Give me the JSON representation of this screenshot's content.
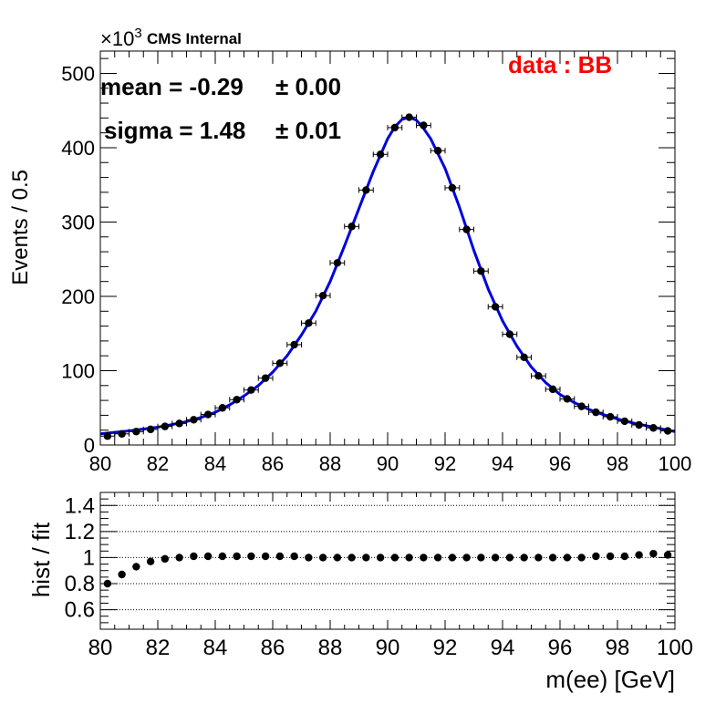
{
  "chart_data": [
    {
      "type": "scatter",
      "panel": "main",
      "title": "",
      "xlabel": "",
      "ylabel": "Events / 0.5",
      "xlim": [
        80,
        100
      ],
      "ylim": [
        0,
        530
      ],
      "y_scale_label": "×10",
      "y_scale_exponent": "3",
      "x_ticks": [
        "80",
        "82",
        "84",
        "86",
        "88",
        "90",
        "92",
        "94",
        "96",
        "98",
        "100"
      ],
      "y_ticks": [
        "0",
        "100",
        "200",
        "300",
        "400",
        "500"
      ],
      "x_tick_values": [
        80,
        82,
        84,
        86,
        88,
        90,
        92,
        94,
        96,
        98,
        100
      ],
      "y_tick_values": [
        0,
        100,
        200,
        300,
        400,
        500
      ],
      "experiment_label": "CMS Internal",
      "category_label": "data : BB",
      "category_color": "#ff0000",
      "fit_color": "#0000dd",
      "mean_text": "mean = -0.29",
      "mean_err_text": "± 0.00",
      "sigma_text": "sigma = 1.48",
      "sigma_err_text": "± 0.01",
      "x_err_half_width": 0.25,
      "series": [
        {
          "type": "points",
          "x": [
            80.25,
            80.75,
            81.25,
            81.75,
            82.25,
            82.75,
            83.25,
            83.75,
            84.25,
            84.75,
            85.25,
            85.75,
            86.25,
            86.75,
            87.25,
            87.75,
            88.25,
            88.75,
            89.25,
            89.75,
            90.25,
            90.75,
            91.25,
            91.75,
            92.25,
            92.75,
            93.25,
            93.75,
            94.25,
            94.75,
            95.25,
            95.75,
            96.25,
            96.75,
            97.25,
            97.75,
            98.25,
            98.75,
            99.25,
            99.75
          ],
          "y": [
            12,
            15,
            18,
            21,
            25,
            29,
            34,
            41,
            50,
            61,
            74,
            90,
            110,
            135,
            164,
            201,
            245,
            294,
            343,
            391,
            427,
            441,
            430,
            396,
            346,
            290,
            234,
            186,
            149,
            118,
            93,
            75,
            62,
            52,
            44,
            38,
            32,
            27,
            23,
            19
          ]
        },
        {
          "type": "line",
          "x": [
            80,
            80.5,
            81,
            81.5,
            82,
            82.5,
            83,
            83.5,
            84,
            84.5,
            85,
            85.5,
            86,
            86.5,
            87,
            87.5,
            88,
            88.5,
            89,
            89.5,
            90,
            90.25,
            90.5,
            90.75,
            91,
            91.25,
            91.5,
            92,
            92.5,
            93,
            93.5,
            94,
            94.5,
            95,
            95.5,
            96,
            96.5,
            97,
            97.5,
            98,
            98.5,
            99,
            99.5,
            100
          ],
          "y": [
            15,
            17,
            19,
            21.5,
            24,
            27.5,
            31.5,
            37,
            44,
            54,
            66,
            80,
            98,
            120,
            148,
            180,
            220,
            268,
            318,
            368,
            412,
            428,
            438,
            441,
            437,
            426,
            412,
            372,
            320,
            262,
            210,
            167,
            133,
            105,
            84,
            68,
            57,
            48,
            41,
            35,
            30,
            26,
            22,
            18
          ]
        }
      ]
    },
    {
      "type": "scatter",
      "panel": "ratio",
      "title": "",
      "xlabel": "m(ee) [GeV]",
      "ylabel": "hist / fit",
      "xlim": [
        80,
        100
      ],
      "ylim": [
        0.45,
        1.5
      ],
      "x_ticks": [
        "80",
        "82",
        "84",
        "86",
        "88",
        "90",
        "92",
        "94",
        "96",
        "98",
        "100"
      ],
      "y_ticks": [
        "0.6",
        "0.8",
        "1",
        "1.2",
        "1.4"
      ],
      "x_tick_values": [
        80,
        82,
        84,
        86,
        88,
        90,
        92,
        94,
        96,
        98,
        100
      ],
      "y_tick_values": [
        0.6,
        0.8,
        1.0,
        1.2,
        1.4
      ],
      "y_tick_text": [
        "0.6",
        "0.8",
        "1",
        "1.2",
        "1.4"
      ],
      "gridlines_y": [
        0.6,
        0.8,
        1.0,
        1.2,
        1.4
      ],
      "series": [
        {
          "type": "points",
          "x": [
            80.25,
            80.75,
            81.25,
            81.75,
            82.25,
            82.75,
            83.25,
            83.75,
            84.25,
            84.75,
            85.25,
            85.75,
            86.25,
            86.75,
            87.25,
            87.75,
            88.25,
            88.75,
            89.25,
            89.75,
            90.25,
            90.75,
            91.25,
            91.75,
            92.25,
            92.75,
            93.25,
            93.75,
            94.25,
            94.75,
            95.25,
            95.75,
            96.25,
            96.75,
            97.25,
            97.75,
            98.25,
            98.75,
            99.25,
            99.75
          ],
          "y": [
            0.8,
            0.87,
            0.93,
            0.97,
            0.99,
            1.0,
            1.01,
            1.01,
            1.01,
            1.01,
            1.01,
            1.01,
            1.01,
            1.01,
            1.0,
            1.0,
            1.0,
            1.0,
            1.0,
            1.0,
            1.0,
            1.0,
            1.0,
            1.0,
            1.0,
            1.0,
            1.0,
            1.0,
            1.0,
            1.0,
            1.0,
            1.0,
            1.0,
            1.0,
            1.01,
            1.01,
            1.01,
            1.02,
            1.03,
            1.02
          ]
        }
      ]
    }
  ]
}
